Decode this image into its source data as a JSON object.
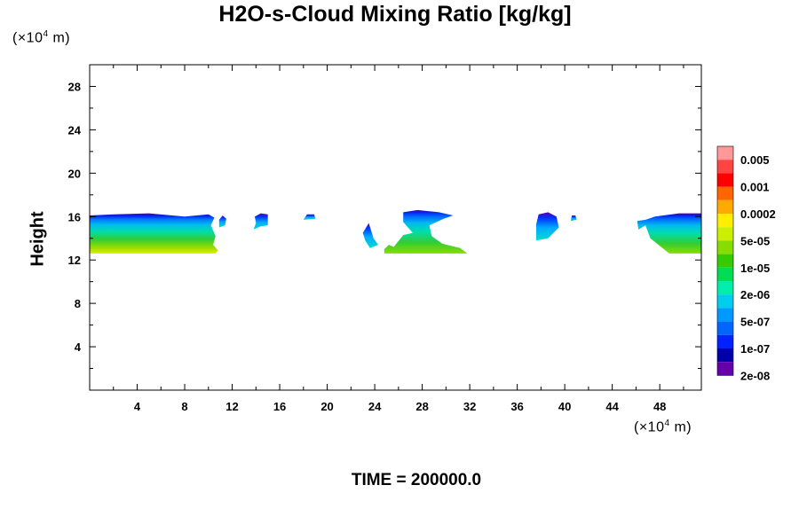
{
  "chart_data": {
    "type": "heatmap",
    "title": "H2O-s-Cloud Mixing Ratio [kg/kg]",
    "ylabel": "Height",
    "x_unit_prefix": "(×10",
    "x_unit_exp": "4",
    "x_unit_suffix": " m)",
    "y_unit_prefix": "(×10",
    "y_unit_exp": "4",
    "y_unit_suffix": " m)",
    "xlim": [
      0,
      51.5
    ],
    "ylim": [
      0,
      30
    ],
    "x_ticks": [
      "4",
      "8",
      "12",
      "16",
      "20",
      "24",
      "28",
      "32",
      "36",
      "40",
      "44",
      "48"
    ],
    "y_ticks": [
      "4",
      "8",
      "12",
      "16",
      "20",
      "24",
      "28"
    ],
    "footer": "TIME = 200000.0",
    "colorbar": {
      "labels": [
        "0.005",
        "0.001",
        "0.0002",
        "5e-05",
        "1e-05",
        "2e-06",
        "5e-07",
        "1e-07",
        "2e-08"
      ],
      "colors": [
        "#ff9999",
        "#ff4444",
        "#ff0000",
        "#ff6600",
        "#ffaa00",
        "#ffee00",
        "#ccee00",
        "#88dd00",
        "#33cc00",
        "#00dd55",
        "#00eeaa",
        "#00ccee",
        "#0099ff",
        "#0066ff",
        "#0022ff",
        "#0000aa",
        "#6600aa"
      ]
    },
    "cloud_regions": [
      {
        "x_start": 0,
        "x_end": 10.8,
        "y_bottom": 12.6,
        "y_top": 16.2,
        "max_level": "5e-05"
      },
      {
        "x_start": 10.8,
        "x_end": 11.5,
        "y_bottom": 15.0,
        "y_top": 16.0,
        "max_level": "5e-07"
      },
      {
        "x_start": 13.8,
        "x_end": 15.0,
        "y_bottom": 14.8,
        "y_top": 16.3,
        "max_level": "5e-07"
      },
      {
        "x_start": 18.0,
        "x_end": 19.0,
        "y_bottom": 15.7,
        "y_top": 16.2,
        "max_level": "1e-07"
      },
      {
        "x_start": 23.0,
        "x_end": 32.0,
        "y_bottom": 12.6,
        "y_top": 16.6,
        "max_level": "1e-05"
      },
      {
        "x_start": 37.5,
        "x_end": 39.5,
        "y_bottom": 13.8,
        "y_top": 16.4,
        "max_level": "2e-06"
      },
      {
        "x_start": 40.5,
        "x_end": 41.0,
        "y_bottom": 15.6,
        "y_top": 16.1,
        "max_level": "1e-07"
      },
      {
        "x_start": 46.0,
        "x_end": 51.5,
        "y_bottom": 12.6,
        "y_top": 16.3,
        "max_level": "2e-06"
      }
    ]
  }
}
